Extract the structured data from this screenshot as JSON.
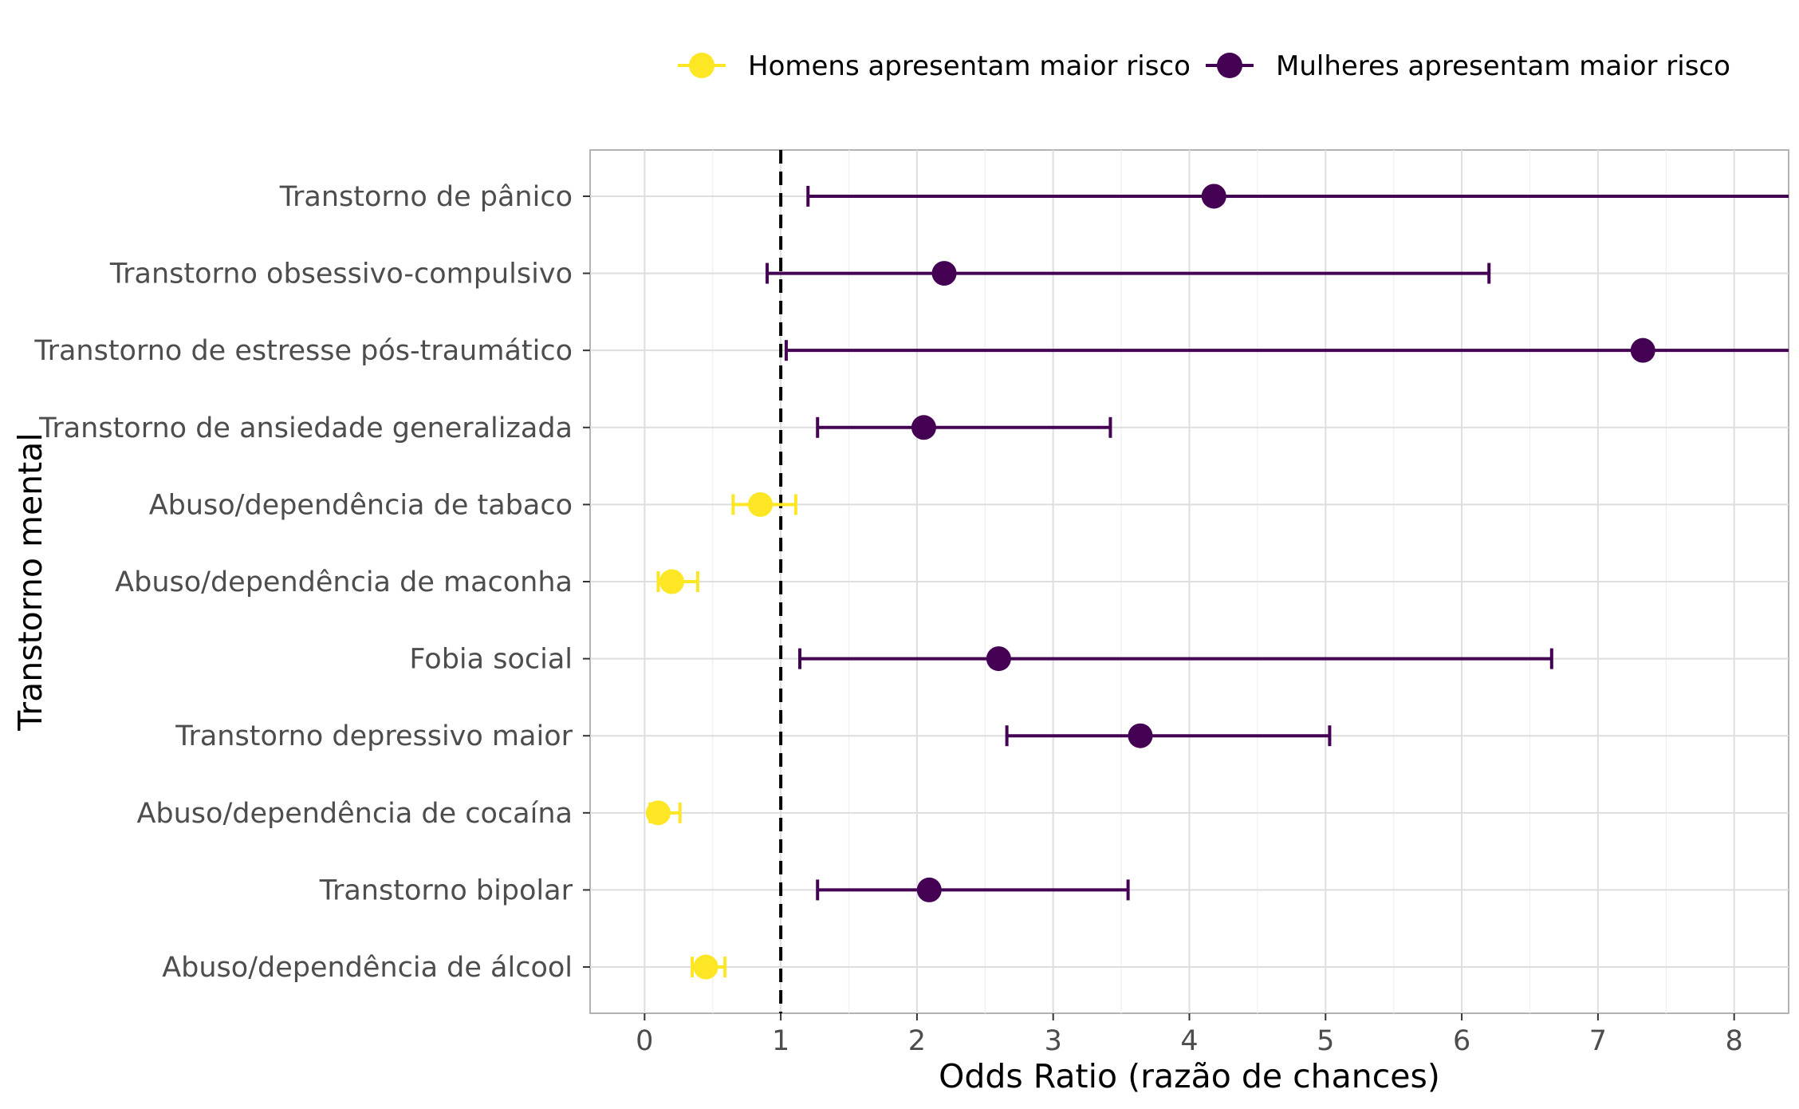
{
  "chart_data": {
    "type": "scatter",
    "xlabel": "Odds Ratio (razão de chances)",
    "ylabel": "Transtorno mental",
    "xlim": [
      -0.4,
      8.4
    ],
    "x_ticks": [
      0,
      1,
      2,
      3,
      4,
      5,
      6,
      7,
      8
    ],
    "grid": true,
    "reference_line": {
      "x": 1,
      "style": "dashed",
      "color": "#000000"
    },
    "legend_position": "top",
    "series": [
      {
        "name": "Homens apresentam maior risco",
        "color": "#FDE725"
      },
      {
        "name": "Mulheres apresentam maior risco",
        "color": "#440154"
      }
    ],
    "categories": [
      "Transtorno de pânico",
      "Transtorno obsessivo-compulsivo",
      "Transtorno de estresse pós-traumático",
      "Transtorno de ansiedade generalizada",
      "Abuso/dependência de tabaco",
      "Abuso/dependência de maconha",
      "Fobia social",
      "Transtorno depressivo maior",
      "Abuso/dependência de cocaína",
      "Transtorno bipolar",
      "Abuso/dependência de álcool"
    ],
    "points": [
      {
        "category": "Transtorno de pânico",
        "series": "Mulheres apresentam maior risco",
        "or": 4.18,
        "lower": 1.2,
        "upper": 8.4
      },
      {
        "category": "Transtorno obsessivo-compulsivo",
        "series": "Mulheres apresentam maior risco",
        "or": 2.2,
        "lower": 0.9,
        "upper": 6.2
      },
      {
        "category": "Transtorno de estresse pós-traumático",
        "series": "Mulheres apresentam maior risco",
        "or": 7.33,
        "lower": 1.04,
        "upper": 8.4
      },
      {
        "category": "Transtorno de ansiedade generalizada",
        "series": "Mulheres apresentam maior risco",
        "or": 2.05,
        "lower": 1.27,
        "upper": 3.42
      },
      {
        "category": "Abuso/dependência de tabaco",
        "series": "Homens apresentam maior risco",
        "or": 0.85,
        "lower": 0.65,
        "upper": 1.11
      },
      {
        "category": "Abuso/dependência de maconha",
        "series": "Homens apresentam maior risco",
        "or": 0.2,
        "lower": 0.1,
        "upper": 0.39
      },
      {
        "category": "Fobia social",
        "series": "Mulheres apresentam maior risco",
        "or": 2.6,
        "lower": 1.14,
        "upper": 6.66
      },
      {
        "category": "Transtorno depressivo maior",
        "series": "Mulheres apresentam maior risco",
        "or": 3.64,
        "lower": 2.66,
        "upper": 5.03
      },
      {
        "category": "Abuso/dependência de cocaína",
        "series": "Homens apresentam maior risco",
        "or": 0.1,
        "lower": 0.04,
        "upper": 0.26
      },
      {
        "category": "Transtorno bipolar",
        "series": "Mulheres apresentam maior risco",
        "or": 2.09,
        "lower": 1.27,
        "upper": 3.55
      },
      {
        "category": "Abuso/dependência de álcool",
        "series": "Homens apresentam maior risco",
        "or": 0.45,
        "lower": 0.35,
        "upper": 0.59
      }
    ]
  }
}
